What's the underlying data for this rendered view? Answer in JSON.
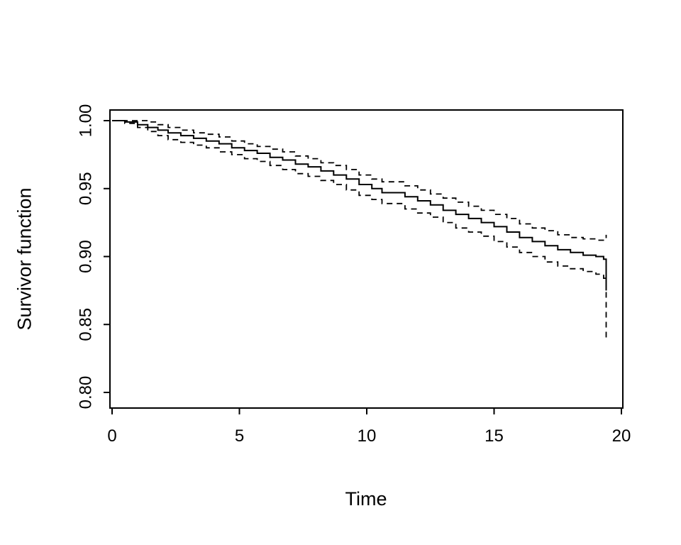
{
  "chart_data": {
    "type": "line",
    "subtype": "kaplan-meier-step",
    "title": "",
    "xlabel": "Time",
    "ylabel": "Survivor function",
    "xlim": [
      0,
      20
    ],
    "ylim": [
      0.8,
      1.0
    ],
    "xticks": [
      0,
      5,
      10,
      15,
      20
    ],
    "xtick_labels": [
      "0",
      "5",
      "10",
      "15",
      "20"
    ],
    "yticks": [
      0.8,
      0.85,
      0.9,
      0.95,
      1.0
    ],
    "ytick_labels": [
      "0.80",
      "0.85",
      "0.90",
      "0.95",
      "1.00"
    ],
    "grid": false,
    "legend": null,
    "line_color": "#000000",
    "x": [
      0,
      0.5,
      1.0,
      1.4,
      1.8,
      2.2,
      2.7,
      3.2,
      3.7,
      4.2,
      4.7,
      5.2,
      5.7,
      6.2,
      6.7,
      7.2,
      7.7,
      8.2,
      8.7,
      9.2,
      9.7,
      10.2,
      10.6,
      11.0,
      11.5,
      12.0,
      12.5,
      13.0,
      13.5,
      14.0,
      14.5,
      15.0,
      15.5,
      16.0,
      16.5,
      17.0,
      17.5,
      18.0,
      18.5,
      19.0,
      19.3,
      19.4
    ],
    "series": [
      {
        "name": "survivor-estimate",
        "label": "Survivor function estimate",
        "style": "solid",
        "values": [
          1.0,
          0.999,
          0.997,
          0.995,
          0.993,
          0.991,
          0.989,
          0.987,
          0.985,
          0.983,
          0.98,
          0.978,
          0.976,
          0.973,
          0.971,
          0.968,
          0.966,
          0.963,
          0.96,
          0.957,
          0.953,
          0.95,
          0.947,
          0.947,
          0.944,
          0.941,
          0.938,
          0.934,
          0.931,
          0.928,
          0.925,
          0.922,
          0.918,
          0.914,
          0.911,
          0.908,
          0.905,
          0.903,
          0.901,
          0.9,
          0.898,
          0.875
        ]
      },
      {
        "name": "upper-confidence-band",
        "label": "Upper confidence band",
        "style": "dashed",
        "values": [
          1.0,
          1.0,
          1.0,
          0.999,
          0.997,
          0.995,
          0.993,
          0.991,
          0.99,
          0.988,
          0.985,
          0.983,
          0.981,
          0.979,
          0.977,
          0.974,
          0.972,
          0.969,
          0.967,
          0.964,
          0.96,
          0.957,
          0.955,
          0.955,
          0.952,
          0.949,
          0.946,
          0.943,
          0.94,
          0.937,
          0.934,
          0.931,
          0.928,
          0.924,
          0.921,
          0.919,
          0.916,
          0.914,
          0.913,
          0.912,
          0.912,
          0.916
        ]
      },
      {
        "name": "lower-confidence-band",
        "label": "Lower confidence band",
        "style": "dashed",
        "values": [
          1.0,
          0.998,
          0.995,
          0.992,
          0.989,
          0.986,
          0.984,
          0.982,
          0.98,
          0.977,
          0.975,
          0.972,
          0.97,
          0.967,
          0.964,
          0.961,
          0.959,
          0.956,
          0.953,
          0.949,
          0.945,
          0.942,
          0.939,
          0.939,
          0.935,
          0.932,
          0.929,
          0.925,
          0.921,
          0.918,
          0.915,
          0.911,
          0.907,
          0.903,
          0.9,
          0.896,
          0.893,
          0.891,
          0.889,
          0.887,
          0.884,
          0.84
        ]
      }
    ]
  }
}
